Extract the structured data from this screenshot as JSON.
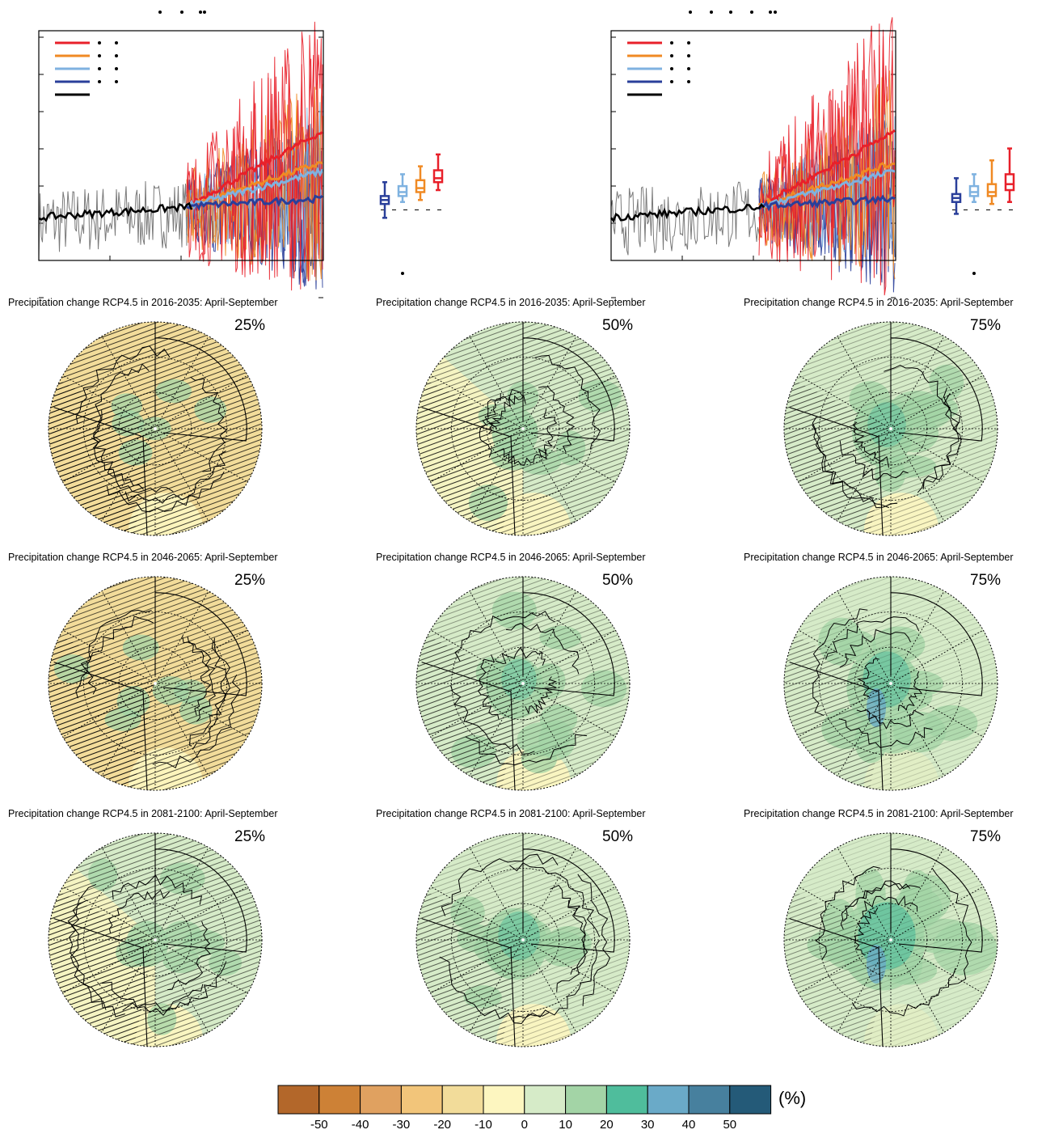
{
  "chart_data": [
    {
      "type": "line",
      "name": "timeseries-left",
      "title": "",
      "series": [
        {
          "name": "",
          "color": "#e8202a"
        },
        {
          "name": "",
          "color": "#f08a24"
        },
        {
          "name": "",
          "color": "#7fb2e0"
        },
        {
          "name": "",
          "color": "#2a3f9a"
        },
        {
          "name": "",
          "color": "#000000"
        }
      ],
      "boxplots": [
        {
          "color": "#2a3f9a",
          "min": -2,
          "q1": 1.5,
          "median": 2.5,
          "q3": 3.5,
          "max": 7
        },
        {
          "color": "#7fb2e0",
          "min": 2,
          "q1": 3.5,
          "median": 4.5,
          "q3": 6,
          "max": 9
        },
        {
          "color": "#f08a24",
          "min": 2.5,
          "q1": 4.5,
          "median": 5.5,
          "q3": 7.5,
          "max": 11
        },
        {
          "color": "#e8202a",
          "min": 5,
          "q1": 7,
          "median": 8,
          "q3": 10,
          "max": 14
        }
      ]
    },
    {
      "type": "line",
      "name": "timeseries-right",
      "title": "",
      "series": [
        {
          "name": "",
          "color": "#e8202a"
        },
        {
          "name": "",
          "color": "#f08a24"
        },
        {
          "name": "",
          "color": "#7fb2e0"
        },
        {
          "name": "",
          "color": "#2a3f9a"
        },
        {
          "name": "",
          "color": "#000000"
        }
      ],
      "boxplots": [
        {
          "color": "#2a3f9a",
          "min": -1,
          "q1": 2,
          "median": 3,
          "q3": 4,
          "max": 8
        },
        {
          "color": "#7fb2e0",
          "min": 2,
          "q1": 3.5,
          "median": 4.5,
          "q3": 6,
          "max": 9
        },
        {
          "color": "#f08a24",
          "min": 1.5,
          "q1": 3.5,
          "median": 4.5,
          "q3": 6.5,
          "max": 12.5
        },
        {
          "color": "#e8202a",
          "min": 2,
          "q1": 5,
          "median": 6.5,
          "q3": 9,
          "max": 15.5
        }
      ]
    },
    {
      "type": "heatmap",
      "name": "polar-maps",
      "panels": [
        {
          "title": "Precipitation change RCP4.5 in 2016-2035: April-September",
          "percentile": "25%",
          "wetness": 0.15
        },
        {
          "title": "Precipitation change RCP4.5 in 2016-2035: April-September",
          "percentile": "50%",
          "wetness": 0.4
        },
        {
          "title": "Precipitation change RCP4.5 in 2016-2035: April-September",
          "percentile": "75%",
          "wetness": 0.6
        },
        {
          "title": "Precipitation change RCP4.5 in 2046-2065: April-September",
          "percentile": "25%",
          "wetness": 0.25
        },
        {
          "title": "Precipitation change RCP4.5 in 2046-2065: April-September",
          "percentile": "50%",
          "wetness": 0.55
        },
        {
          "title": "Precipitation change RCP4.5 in 2046-2065: April-September",
          "percentile": "75%",
          "wetness": 0.75
        },
        {
          "title": "Precipitation change RCP4.5 in 2081-2100: April-September",
          "percentile": "25%",
          "wetness": 0.35
        },
        {
          "title": "Precipitation change RCP4.5 in 2081-2100: April-September",
          "percentile": "50%",
          "wetness": 0.65
        },
        {
          "title": "Precipitation change RCP4.5 in 2081-2100: April-September",
          "percentile": "75%",
          "wetness": 0.9
        }
      ]
    },
    {
      "type": "colorbar",
      "name": "colorbar",
      "colors": [
        "#b3672a",
        "#cd8136",
        "#e0a160",
        "#f2c57a",
        "#f2dc9a",
        "#fdf6c0",
        "#d6ebc8",
        "#a3d4a6",
        "#4fbd9c",
        "#6aaac8",
        "#47809e",
        "#245a78"
      ],
      "tick_labels": [
        "-50",
        "-40",
        "-30",
        "-20",
        "-10",
        "0",
        "10",
        "20",
        "30",
        "40",
        "50"
      ],
      "unit": "(%)"
    }
  ]
}
